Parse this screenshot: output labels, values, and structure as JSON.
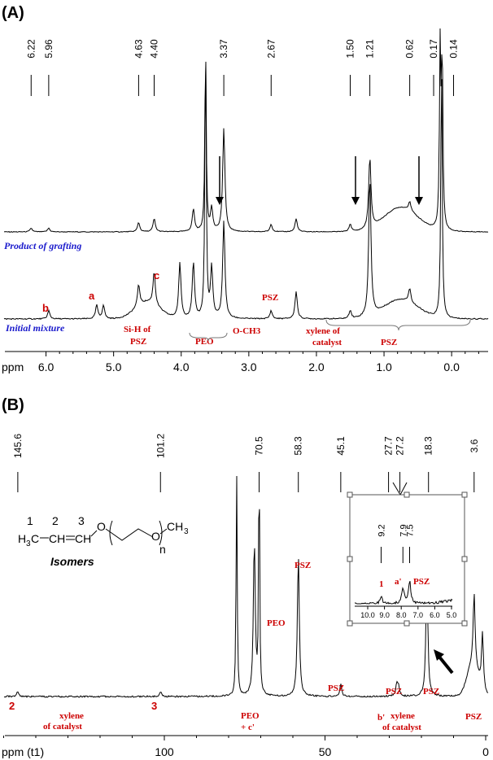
{
  "chart_data": [
    {
      "panel": "(A)",
      "type": "line",
      "xlabel": "ppm",
      "xlim": [
        6.5,
        -0.45
      ],
      "x_reversed": true,
      "x_ticks": [
        "6.0",
        "5.0",
        "4.0",
        "3.0",
        "2.0",
        "1.0",
        "0.0"
      ],
      "x_tick_values": [
        6.0,
        5.0,
        4.0,
        3.0,
        2.0,
        1.0,
        0.0
      ],
      "peak_labels": [
        "6.22",
        "5.96",
        "4.63",
        "4.40",
        "3.37",
        "2.67",
        "1.50",
        "1.21",
        "0.62",
        "0.17",
        "0.14"
      ],
      "peak_values": [
        6.22,
        5.96,
        4.63,
        4.4,
        3.37,
        2.67,
        1.5,
        1.21,
        0.62,
        0.17,
        0.14
      ],
      "series": [
        {
          "name": "Product of grafting",
          "peaks": [
            {
              "ppm": 6.22,
              "h": 0.02
            },
            {
              "ppm": 5.96,
              "h": 0.02
            },
            {
              "ppm": 4.63,
              "h": 0.05
            },
            {
              "ppm": 4.4,
              "h": 0.07
            },
            {
              "ppm": 3.82,
              "h": 0.12
            },
            {
              "ppm": 3.64,
              "h": 1.0
            },
            {
              "ppm": 3.55,
              "h": 0.12
            },
            {
              "ppm": 3.37,
              "h": 0.55
            },
            {
              "ppm": 2.67,
              "h": 0.04
            },
            {
              "ppm": 2.3,
              "h": 0.07
            },
            {
              "ppm": 1.5,
              "h": 0.04
            },
            {
              "ppm": 1.21,
              "h": 0.38
            },
            {
              "ppm": 0.62,
              "h": 0.05
            },
            {
              "ppm": 0.17,
              "h": 0.95
            },
            {
              "ppm": 0.14,
              "h": 0.95
            }
          ]
        },
        {
          "name": "Initial mixture",
          "peaks": [
            {
              "ppm": 5.96,
              "h": 0.03
            },
            {
              "ppm": 5.25,
              "h": 0.05
            },
            {
              "ppm": 5.15,
              "h": 0.05
            },
            {
              "ppm": 4.63,
              "h": 0.08
            },
            {
              "ppm": 4.4,
              "h": 0.12
            },
            {
              "ppm": 4.02,
              "h": 0.2
            },
            {
              "ppm": 3.82,
              "h": 0.2
            },
            {
              "ppm": 3.64,
              "h": 1.0
            },
            {
              "ppm": 3.55,
              "h": 0.18
            },
            {
              "ppm": 3.37,
              "h": 0.35
            },
            {
              "ppm": 2.67,
              "h": 0.03
            },
            {
              "ppm": 2.3,
              "h": 0.1
            },
            {
              "ppm": 1.5,
              "h": 0.03
            },
            {
              "ppm": 1.21,
              "h": 0.5
            },
            {
              "ppm": 0.62,
              "h": 0.05
            },
            {
              "ppm": 0.15,
              "h": 0.95
            }
          ]
        }
      ],
      "annotations": [
        "b",
        "a",
        "c",
        "Si-H of",
        "PSZ",
        "PEO",
        "O-CH3",
        "PSZ",
        "xylene of",
        "catalyst",
        "PSZ"
      ]
    },
    {
      "panel": "(B)",
      "type": "line",
      "xlabel": "ppm (t1)",
      "xlim": [
        152,
        -2
      ],
      "x_reversed": true,
      "x_ticks": [
        "100",
        "50",
        "0"
      ],
      "x_tick_values": [
        100,
        50,
        0
      ],
      "peak_labels": [
        "145.6",
        "101.2",
        "70.5",
        "58.3",
        "45.1",
        "27.7",
        "27.2",
        "18.3",
        "3.6"
      ],
      "peak_values": [
        145.6,
        101.2,
        70.5,
        58.3,
        45.1,
        27.7,
        27.2,
        18.3,
        3.6
      ],
      "peaks": [
        {
          "ppm": 145.6,
          "h": 0.02
        },
        {
          "ppm": 101.2,
          "h": 0.02
        },
        {
          "ppm": 77.5,
          "h": 1.0
        },
        {
          "ppm": 72.0,
          "h": 0.6
        },
        {
          "ppm": 70.5,
          "h": 1.0
        },
        {
          "ppm": 58.3,
          "h": 0.55
        },
        {
          "ppm": 45.1,
          "h": 0.05
        },
        {
          "ppm": 27.7,
          "h": 0.04
        },
        {
          "ppm": 27.2,
          "h": 0.04
        },
        {
          "ppm": 18.3,
          "h": 0.5
        },
        {
          "ppm": 3.6,
          "h": 0.28
        },
        {
          "ppm": 1.0,
          "h": 0.22
        }
      ],
      "annotations": [
        "2",
        "3",
        "xylene",
        "of catalyst",
        "PEO",
        "+ c'",
        "PEO",
        "PSZ",
        "PSZ",
        "b'",
        "PSZ",
        "xylene",
        "of catalyst",
        "PSZ",
        "PSZ"
      ],
      "structure": {
        "labels": [
          "1",
          "2",
          "3"
        ],
        "formula": [
          "H",
          "3",
          "C",
          "CH",
          "CH",
          "O",
          "O",
          "CH",
          "3",
          "n"
        ],
        "caption": "Isomers"
      },
      "inset": {
        "x_ticks": [
          "10.0",
          "9.0",
          "8.0",
          "7.0",
          "6.0",
          "5.0"
        ],
        "peak_labels": [
          "9.2",
          "7.9",
          "7.5"
        ],
        "annotations": [
          "1",
          "a'",
          "PSZ"
        ]
      }
    }
  ]
}
